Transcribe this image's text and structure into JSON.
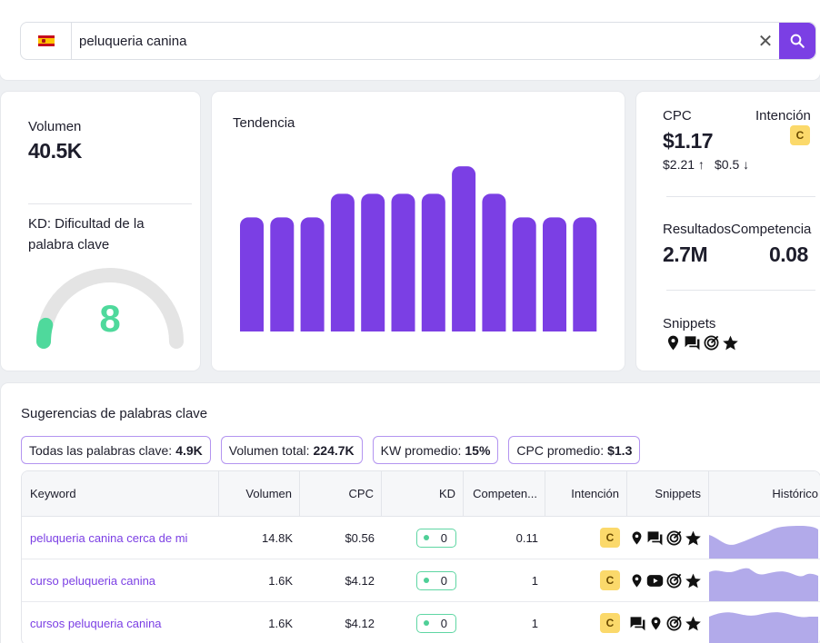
{
  "search": {
    "query": "peluqueria canina",
    "flag": "spain-flag",
    "clear_icon": "close-icon",
    "search_icon": "search-icon"
  },
  "metrics": {
    "volume_label": "Volumen",
    "volume_value": "40.5K",
    "kd_label": "KD: Dificultad de la palabra clave",
    "kd_value": "8",
    "kd_max": 100,
    "trend_label": "Tendencia",
    "trend_values": [
      58,
      58,
      58,
      70,
      70,
      70,
      70,
      84,
      70,
      58,
      58,
      58
    ],
    "cpc_label": "CPC",
    "cpc_value": "$1.17",
    "cpc_high": "$2.21 ↑",
    "cpc_low": "$0.5 ↓",
    "intent_label": "Intención",
    "intent_value": "C",
    "results_label": "Resultados",
    "results_value": "2.7M",
    "competition_label": "Competencia",
    "competition_value": "0.08",
    "snippets_label": "Snippets",
    "snippet_icons": [
      "map-pin-icon",
      "reviews-icon",
      "sitelinks-icon",
      "star-icon"
    ]
  },
  "suggestions": {
    "title": "Sugerencias de palabras clave",
    "pills": [
      {
        "label": "Todas las palabras clave:",
        "value": "4.9K"
      },
      {
        "label": "Volumen total:",
        "value": "224.7K"
      },
      {
        "label": "KW promedio:",
        "value": "15%"
      },
      {
        "label": "CPC promedio:",
        "value": "$1.3"
      }
    ],
    "columns": [
      "Keyword",
      "Volumen",
      "CPC",
      "KD",
      "Competen...",
      "Intención",
      "Snippets",
      "Histórico"
    ],
    "rows": [
      {
        "keyword": "peluqueria canina cerca de mi",
        "volume": "14.8K",
        "cpc": "$0.56",
        "kd": "0",
        "competition": "0.11",
        "intent": "C",
        "snippets": [
          "map-pin-icon",
          "reviews-icon",
          "sitelinks-icon",
          "star-icon"
        ]
      },
      {
        "keyword": "curso peluqueria canina",
        "volume": "1.6K",
        "cpc": "$4.12",
        "kd": "0",
        "competition": "1",
        "intent": "C",
        "snippets": [
          "map-pin-icon",
          "video-icon",
          "sitelinks-icon",
          "star-icon"
        ]
      },
      {
        "keyword": "cursos peluqueria canina",
        "volume": "1.6K",
        "cpc": "$4.12",
        "kd": "0",
        "competition": "1",
        "intent": "C",
        "snippets": [
          "reviews-icon",
          "map-pin-icon",
          "sitelinks-icon",
          "star-icon"
        ]
      }
    ]
  },
  "colors": {
    "accent": "#7b3fe4",
    "bar": "#7b3fe4",
    "kd_green": "#5fd6a3",
    "intent_badge": "#fbd96b",
    "history_fill": "#b2aaea"
  }
}
